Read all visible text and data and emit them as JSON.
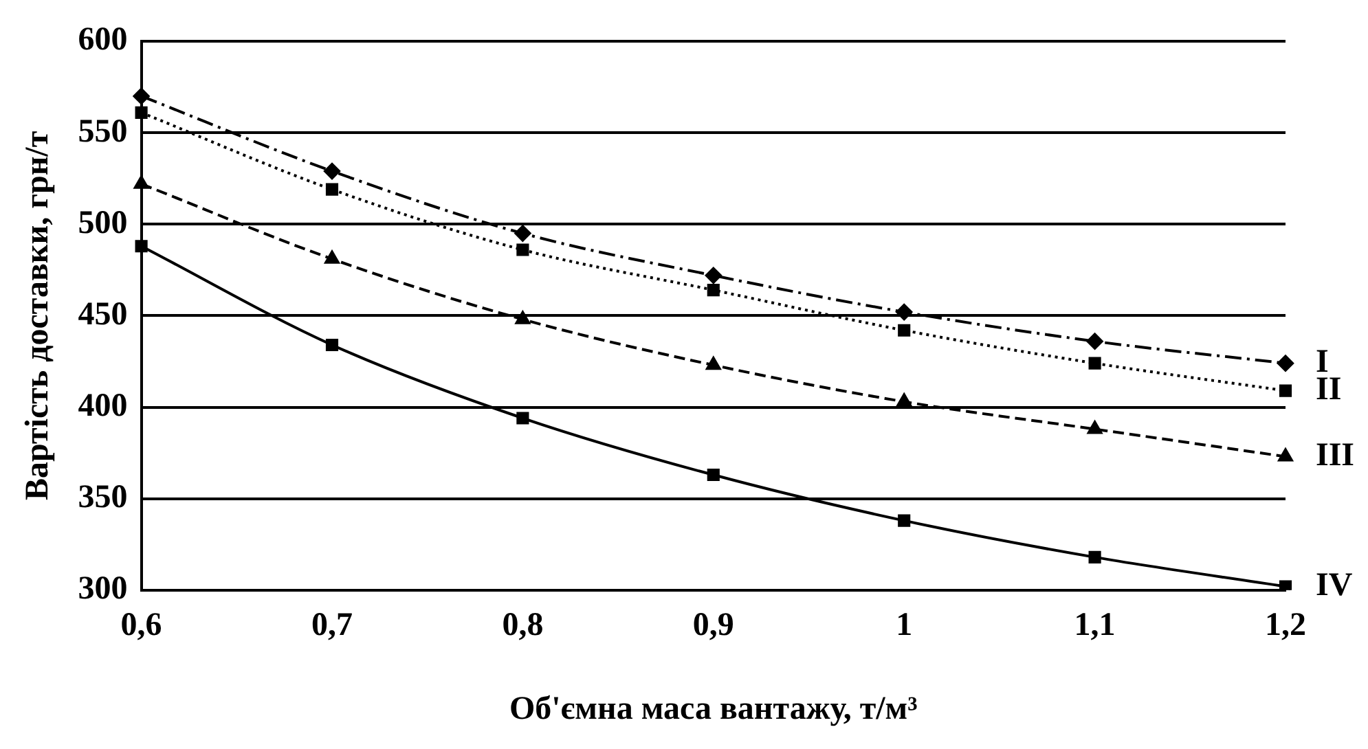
{
  "chart_data": {
    "type": "line",
    "xlabel": "Об'ємна маса вантажу, т/м³",
    "ylabel": "Вартість доставки, грн/т",
    "categories": [
      "0,6",
      "0,7",
      "0,8",
      "0,9",
      "1",
      "1,1",
      "1,2"
    ],
    "ylim": [
      300,
      600
    ],
    "yticks": [
      300,
      350,
      400,
      450,
      500,
      550,
      600
    ],
    "grid": "y",
    "legend": false,
    "series": [
      {
        "name": "I",
        "color": "#000000",
        "marker": "diamond",
        "line_style": "dashdot",
        "values": [
          570,
          529,
          495,
          472,
          452,
          436,
          424
        ]
      },
      {
        "name": "II",
        "color": "#000000",
        "marker": "square",
        "line_style": "dotted",
        "values": [
          561,
          519,
          486,
          464,
          442,
          424,
          409
        ]
      },
      {
        "name": "III",
        "color": "#000000",
        "marker": "triangle",
        "line_style": "dashed",
        "values": [
          522,
          481,
          448,
          423,
          403,
          388,
          373
        ]
      },
      {
        "name": "IV",
        "color": "#000000",
        "marker": "square",
        "line_style": "solid",
        "values": [
          488,
          434,
          394,
          363,
          338,
          318,
          302
        ]
      }
    ]
  }
}
